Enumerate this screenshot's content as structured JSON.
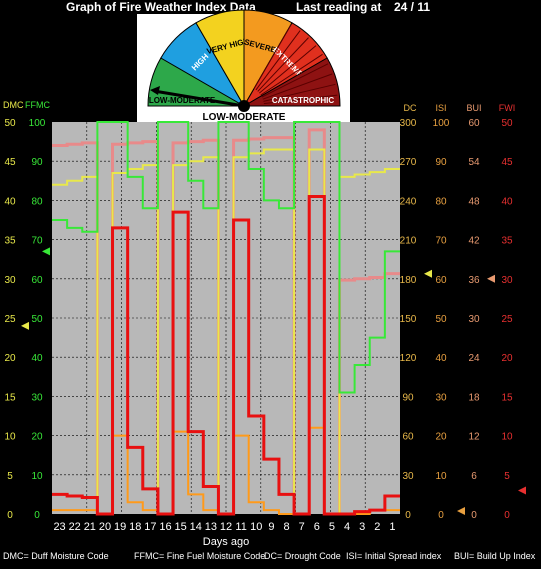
{
  "header": {
    "title": "Graph of Fire Weather Index Data",
    "reading_label": "Last reading at",
    "reading_date": "24 / 11"
  },
  "gauge": {
    "segments": [
      "LOW-MODERATE",
      "HIGH",
      "VERY HIGH",
      "SEVERE",
      "EXTREME",
      "CATASTROPHIC"
    ],
    "colors": [
      "#2da84a",
      "#1f9fe0",
      "#f3d21f",
      "#f39a1f",
      "#e0301e",
      "#8e1212"
    ],
    "current_rating": "LOW-MODERATE"
  },
  "axes": {
    "dmc_label": "DMC",
    "ffmc_label": "FFMC",
    "dc_label": "DC",
    "isi_label": "ISI",
    "bui_label": "BUI",
    "fwi_label": "FWI",
    "xlabel": "Days ago"
  },
  "colors": {
    "dmc": "#e8e84a",
    "ffmc": "#38e838",
    "dc": "#e88a8a",
    "isi": "#ff9a1a",
    "bui": "#ff9a1a",
    "fwi": "#e81010",
    "plot_bg": "#b8b8b8",
    "dc_axis": "#e8b84a",
    "isi_axis": "#e8a040",
    "bui_axis": "#e89a70",
    "fwi_axis": "#e83030"
  },
  "footer": {
    "dmc": "DMC= Duff Moisture Code",
    "ffmc": "FFMC= Fine Fuel Moisture Code",
    "dc": "DC= Drought Code",
    "isi": "ISI= Initial Spread index",
    "bui": "BUI= Build Up Index"
  },
  "chart_data": {
    "type": "line",
    "title": "Graph of Fire Weather Index Data",
    "xlabel": "Days ago",
    "days": [
      "23",
      "22",
      "21",
      "20",
      "19",
      "18",
      "17",
      "16",
      "15",
      "14",
      "13",
      "12",
      "11",
      "10",
      "9",
      "8",
      "7",
      "6",
      "5",
      "4",
      "3",
      "2",
      "1"
    ],
    "axes": [
      {
        "name": "DMC",
        "side": "left",
        "ylim": [
          0,
          50
        ],
        "ticks": [
          0,
          5,
          10,
          15,
          20,
          25,
          30,
          35,
          40,
          45,
          50
        ]
      },
      {
        "name": "FFMC",
        "side": "left",
        "ylim": [
          0,
          100
        ],
        "ticks": [
          0,
          10,
          20,
          30,
          40,
          50,
          60,
          70,
          80,
          90,
          100
        ]
      },
      {
        "name": "DC",
        "side": "right",
        "ylim": [
          0,
          300
        ],
        "ticks": [
          0,
          30,
          60,
          90,
          120,
          150,
          180,
          210,
          240,
          270,
          300
        ]
      },
      {
        "name": "ISI",
        "side": "right",
        "ylim": [
          0,
          100
        ],
        "ticks": [
          0,
          10,
          20,
          30,
          40,
          50,
          60,
          70,
          80,
          90,
          100
        ]
      },
      {
        "name": "BUI",
        "side": "right",
        "ylim": [
          0,
          60
        ],
        "ticks": [
          0,
          6,
          12,
          18,
          24,
          30,
          36,
          42,
          48,
          54,
          60
        ]
      },
      {
        "name": "FWI",
        "side": "right",
        "ylim": [
          0,
          50
        ],
        "ticks": [
          0,
          5,
          10,
          15,
          20,
          25,
          30,
          35,
          40,
          45,
          50
        ]
      }
    ],
    "series": [
      {
        "key": "dc",
        "axis": "DC",
        "values": [
          282,
          283,
          284,
          0,
          283,
          284,
          285,
          0,
          284,
          285,
          286,
          0,
          286,
          287,
          288,
          288,
          0,
          294,
          0,
          179,
          180,
          181,
          184
        ]
      },
      {
        "key": "dmc",
        "axis": "DMC",
        "values": [
          42,
          42.5,
          43,
          0,
          43.5,
          44,
          44.5,
          0,
          44.5,
          45,
          45.5,
          0,
          45.5,
          46,
          46.5,
          46.5,
          0,
          46.5,
          0,
          43,
          43.3,
          43.6,
          44
        ]
      },
      {
        "key": "ffmc",
        "axis": "FFMC",
        "values": [
          75,
          73,
          72,
          100,
          100,
          86,
          78,
          100,
          100,
          85,
          78,
          100,
          100,
          88,
          80,
          78,
          100,
          100,
          100,
          31,
          38,
          45,
          67
        ]
      },
      {
        "key": "isi",
        "axis": "ISI",
        "values": [
          1,
          1,
          1,
          0,
          20,
          3,
          1,
          0,
          21,
          5,
          1,
          0,
          20,
          3,
          1,
          0,
          0,
          22,
          0,
          0,
          0,
          1,
          1
        ]
      },
      {
        "key": "fwi",
        "axis": "FWI",
        "values": [
          2.5,
          2.3,
          2.1,
          0,
          36.5,
          8.5,
          3.2,
          0,
          38.5,
          10.5,
          3.5,
          0,
          37.5,
          12.5,
          7,
          2.5,
          0,
          40.5,
          0,
          0,
          0.3,
          0.5,
          2.3
        ]
      }
    ],
    "current": {
      "DMC": 24,
      "FFMC": 67,
      "DC": 180,
      "ISI": 0,
      "BUI": 36,
      "FWI": 3
    },
    "grid": true
  }
}
